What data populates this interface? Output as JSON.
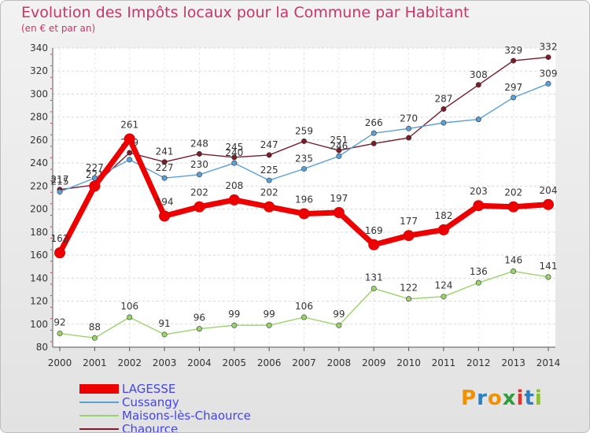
{
  "title": "Evolution des Impôts locaux pour la Commune par Habitant",
  "subtitle": "(en € et par an)",
  "logo": [
    "P",
    "r",
    "o",
    "x",
    "i",
    "t",
    "i"
  ],
  "chart_data": {
    "type": "line",
    "x": [
      "2000",
      "2001",
      "2002",
      "2003",
      "2004",
      "2005",
      "2006",
      "2007",
      "2008",
      "2009",
      "2010",
      "2011",
      "2012",
      "2013",
      "2014"
    ],
    "ylim": [
      80,
      340
    ],
    "yticks": [
      80,
      100,
      120,
      140,
      160,
      180,
      200,
      220,
      240,
      260,
      280,
      300,
      320,
      340
    ],
    "grid": true,
    "legend_position": "bottom-left",
    "series": [
      {
        "name": "Chaource",
        "color": "#7a1c2a",
        "values": [
          217,
          221,
          249,
          241,
          248,
          245,
          247,
          259,
          251,
          257,
          262,
          287,
          308,
          329,
          332
        ],
        "labels": [
          "217",
          "221",
          "249",
          "241",
          "248",
          "245",
          "247",
          "259",
          "251",
          "",
          "",
          "287",
          "308",
          "329",
          "332"
        ]
      },
      {
        "name": "Cussangy",
        "color": "#5aa0d8",
        "values": [
          215,
          227,
          243,
          227,
          230,
          240,
          225,
          235,
          246,
          266,
          270,
          275,
          278,
          297,
          309
        ],
        "labels": [
          "215",
          "227",
          "",
          "227",
          "230",
          "240",
          "225",
          "235",
          "246",
          "266",
          "270",
          "",
          "",
          "297",
          "309"
        ]
      },
      {
        "name": "Maisons-lès-Chaource",
        "color": "#99d46b",
        "values": [
          92,
          88,
          106,
          91,
          96,
          99,
          99,
          106,
          99,
          131,
          122,
          124,
          136,
          146,
          141
        ],
        "labels": [
          "92",
          "88",
          "106",
          "91",
          "96",
          "99",
          "99",
          "106",
          "99",
          "131",
          "122",
          "124",
          "136",
          "146",
          "141"
        ]
      },
      {
        "name": "LAGESSE",
        "color": "#ee0000",
        "values": [
          162,
          220,
          261,
          194,
          202,
          208,
          202,
          196,
          197,
          169,
          177,
          182,
          203,
          202,
          204
        ],
        "labels": [
          "162",
          "",
          "261",
          "194",
          "202",
          "208",
          "202",
          "196",
          "197",
          "169",
          "177",
          "182",
          "203",
          "202",
          "204"
        ]
      }
    ]
  }
}
